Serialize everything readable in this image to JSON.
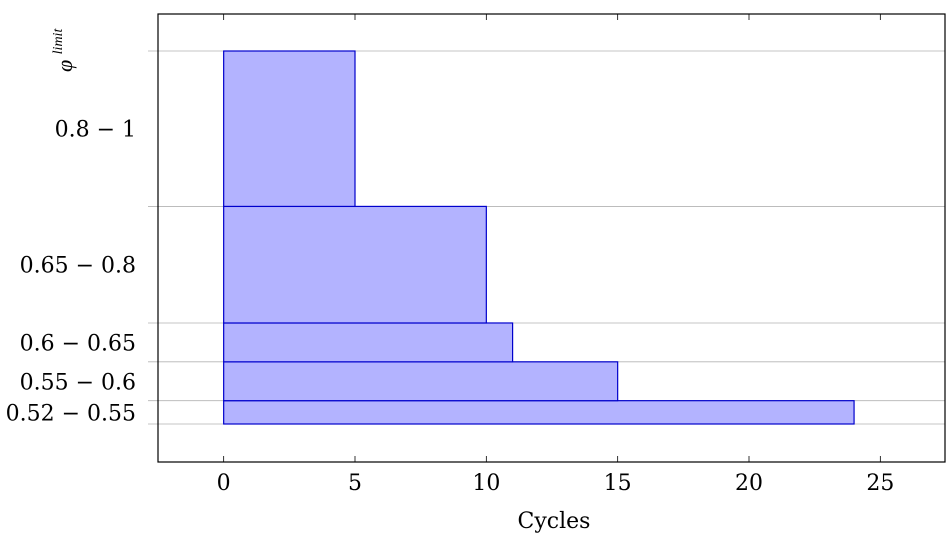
{
  "chart_data": {
    "type": "bar",
    "orientation": "horizontal",
    "title": "",
    "xlabel": "Cycles",
    "ylabel": "φ",
    "ylabel_superscript": "limit",
    "xlim": [
      -2.5,
      27.5
    ],
    "xticks": [
      0,
      5,
      10,
      15,
      20,
      25
    ],
    "y_edges": [
      0.52,
      0.55,
      0.6,
      0.65,
      0.8,
      1.0
    ],
    "grid": "y",
    "legend": "none",
    "bins": [
      {
        "label": "0.52 − 0.55",
        "y0": 0.52,
        "y1": 0.55,
        "value": 24
      },
      {
        "label": "0.55 − 0.6",
        "y0": 0.55,
        "y1": 0.6,
        "value": 15
      },
      {
        "label": "0.6 − 0.65",
        "y0": 0.6,
        "y1": 0.65,
        "value": 11
      },
      {
        "label": "0.65 − 0.8",
        "y0": 0.65,
        "y1": 0.8,
        "value": 10
      },
      {
        "label": "0.8 − 1",
        "y0": 0.8,
        "y1": 1.0,
        "value": 5
      }
    ],
    "colors": {
      "bar_fill": "#b3b3ff",
      "bar_stroke": "#0000cc",
      "grid": "#b3b3b3"
    }
  }
}
